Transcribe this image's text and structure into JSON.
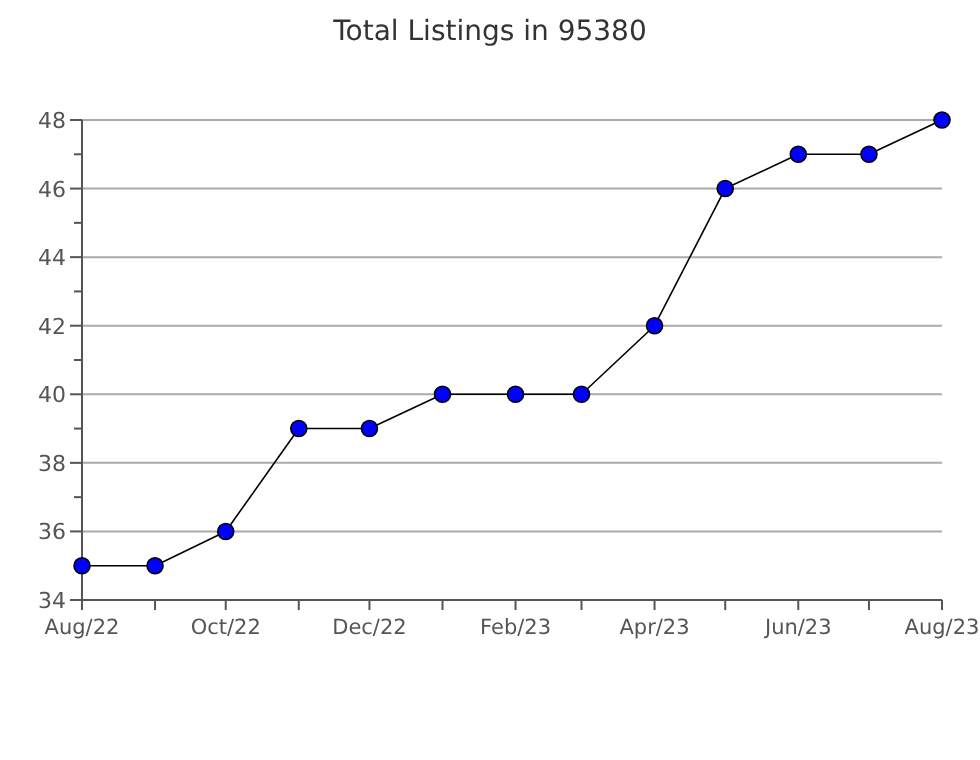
{
  "chart_data": {
    "type": "line",
    "title": "Total Listings in 95380",
    "x": [
      "2022-08",
      "2022-09",
      "2022-10",
      "2022-11",
      "2022-12",
      "2023-01",
      "2023-02",
      "2023-03",
      "2023-04",
      "2023-05",
      "2023-06",
      "2023-07",
      "2023-08"
    ],
    "series": [
      {
        "color": "#0000ff",
        "values": [
          35,
          35,
          36,
          39,
          39,
          40,
          40,
          40,
          42,
          46,
          47,
          47,
          48
        ]
      }
    ],
    "xlim": [
      "2022-08",
      "2023-08"
    ],
    "xticks": [
      {
        "value": "2022-08",
        "label": "Aug/22"
      },
      {
        "value": "2022-09",
        "label": null
      },
      {
        "value": "2022-10",
        "label": "Oct/22"
      },
      {
        "value": "2022-11",
        "label": null
      },
      {
        "value": "2022-12",
        "label": "Dec/22"
      },
      {
        "value": "2023-01",
        "label": null
      },
      {
        "value": "2023-02",
        "label": "Feb/23"
      },
      {
        "value": "2023-03",
        "label": null
      },
      {
        "value": "2023-04",
        "label": "Apr/23"
      },
      {
        "value": "2023-05",
        "label": null
      },
      {
        "value": "2023-06",
        "label": "Jun/23"
      },
      {
        "value": "2023-07",
        "label": null
      },
      {
        "value": "2023-08",
        "label": "Aug/23"
      }
    ],
    "ylim": [
      34,
      48
    ],
    "yticks": [
      34,
      {
        "value": 35,
        "label": null
      },
      36,
      {
        "value": 37,
        "label": null
      },
      38,
      {
        "value": 39,
        "label": null
      },
      40,
      {
        "value": 41,
        "label": null
      },
      42,
      {
        "value": 43,
        "label": null
      },
      44,
      {
        "value": 45,
        "label": null
      },
      46,
      {
        "value": 47,
        "label": null
      },
      48
    ],
    "grid": "y",
    "marker": "circle",
    "line_style": "solid"
  }
}
